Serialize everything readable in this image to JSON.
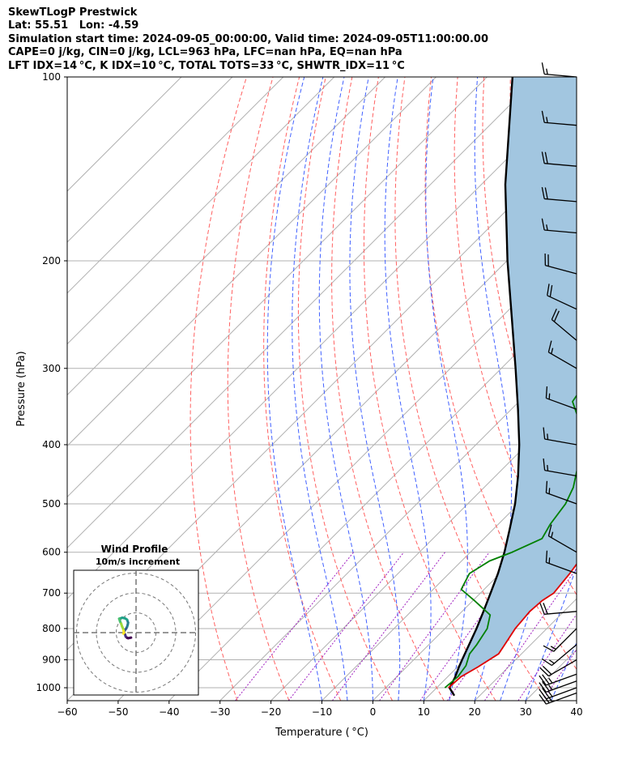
{
  "header": {
    "lines": [
      "SkewTLogP Prestwick",
      "Lat: 55.51   Lon: -4.59",
      "Simulation start time: 2024-09-05_00:00:00, Valid time: 2024-09-05T11:00:00.00",
      "CAPE=0 j/kg, CIN=0 j/kg, LCL=963 hPa, LFC=nan hPa, EQ=nan hPa",
      "LFT IDX=14 °C, K IDX=10 °C, TOTAL TOTS=33 °C, SHWTR_IDX=11 °C"
    ]
  },
  "chart_data": {
    "type": "skew-t",
    "xlabel": "Temperature ( °C)",
    "ylabel": "Pressure (hPa)",
    "xlim": [
      -60,
      40
    ],
    "ylim": [
      1050,
      100
    ],
    "x_ticks": [
      -60,
      -50,
      -40,
      -30,
      -20,
      -10,
      0,
      10,
      20,
      30,
      40
    ],
    "x_tick_labels": [
      "−60",
      "−50",
      "−40",
      "−30",
      "−20",
      "−10",
      "0",
      "10",
      "20",
      "30",
      "40"
    ],
    "y_ticks": [
      100,
      200,
      300,
      400,
      500,
      600,
      700,
      800,
      900,
      1000
    ],
    "grid": true,
    "skew": "45deg",
    "colors": {
      "temperature": "#e00000",
      "dewpoint": "#008000",
      "parcel": "#000000",
      "cape_fill": "#a2c6e0",
      "dry_adiabats": "#ff6060",
      "moist_adiabats": "#4060ff",
      "mixing_ratio": "#a020c0"
    },
    "temperature_profile": [
      {
        "p": 1000,
        "t": 12.3
      },
      {
        "p": 960,
        "t": 12.6
      },
      {
        "p": 925,
        "t": 14.0
      },
      {
        "p": 880,
        "t": 15.5
      },
      {
        "p": 850,
        "t": 14.9
      },
      {
        "p": 800,
        "t": 13.8
      },
      {
        "p": 750,
        "t": 13.3
      },
      {
        "p": 720,
        "t": 13.6
      },
      {
        "p": 700,
        "t": 14.4
      },
      {
        "p": 650,
        "t": 13.7
      },
      {
        "p": 600,
        "t": 12.6
      },
      {
        "p": 550,
        "t": 10.7
      },
      {
        "p": 500,
        "t": 8.0
      },
      {
        "p": 450,
        "t": 4.2
      },
      {
        "p": 400,
        "t": 0.2
      },
      {
        "p": 350,
        "t": -4.9
      },
      {
        "p": 320,
        "t": -9.2
      },
      {
        "p": 300,
        "t": -11.8
      },
      {
        "p": 270,
        "t": -15.0
      },
      {
        "p": 250,
        "t": -17.7
      },
      {
        "p": 235,
        "t": -20.1
      },
      {
        "p": 220,
        "t": -21.5
      },
      {
        "p": 200,
        "t": -24.4
      },
      {
        "p": 180,
        "t": -28.5
      },
      {
        "p": 165,
        "t": -31.6
      },
      {
        "p": 150,
        "t": -35.3
      },
      {
        "p": 140,
        "t": -38.4
      },
      {
        "p": 130,
        "t": -41.0
      },
      {
        "p": 120,
        "t": -44.6
      },
      {
        "p": 110,
        "t": -48.0
      },
      {
        "p": 100,
        "t": -51.9
      }
    ],
    "dewpoint_profile": [
      {
        "p": 1000,
        "t": 11.6
      },
      {
        "p": 960,
        "t": 12.0
      },
      {
        "p": 920,
        "t": 11.4
      },
      {
        "p": 880,
        "t": 9.8
      },
      {
        "p": 850,
        "t": 9.4
      },
      {
        "p": 800,
        "t": 8.3
      },
      {
        "p": 760,
        "t": 6.2
      },
      {
        "p": 720,
        "t": 0.3
      },
      {
        "p": 690,
        "t": -4.5
      },
      {
        "p": 650,
        "t": -6.0
      },
      {
        "p": 620,
        "t": -4.5
      },
      {
        "p": 600,
        "t": -1.8
      },
      {
        "p": 570,
        "t": 1.4
      },
      {
        "p": 540,
        "t": 0.2
      },
      {
        "p": 500,
        "t": -0.8
      },
      {
        "p": 470,
        "t": -2.5
      },
      {
        "p": 440,
        "t": -5.2
      },
      {
        "p": 400,
        "t": -9.4
      },
      {
        "p": 360,
        "t": -15.5
      },
      {
        "p": 340,
        "t": -19.5
      },
      {
        "p": 320,
        "t": -20.5
      },
      {
        "p": 300,
        "t": -21.8
      },
      {
        "p": 285,
        "t": -22.8
      },
      {
        "p": 270,
        "t": -24.8
      },
      {
        "p": 250,
        "t": -28.5
      },
      {
        "p": 235,
        "t": -31.5
      },
      {
        "p": 220,
        "t": -31.6
      },
      {
        "p": 200,
        "t": -33.0
      },
      {
        "p": 185,
        "t": -35.5
      },
      {
        "p": 170,
        "t": -39.5
      },
      {
        "p": 160,
        "t": -43.0
      },
      {
        "p": 155,
        "t": -44.8
      },
      {
        "p": 145,
        "t": -45.4
      },
      {
        "p": 130,
        "t": -48.3
      },
      {
        "p": 115,
        "t": -52.4
      },
      {
        "p": 100,
        "t": -57.1
      }
    ],
    "parcel_profile": [
      {
        "p": 1030,
        "t": 15.0
      },
      {
        "p": 1000,
        "t": 12.5
      },
      {
        "p": 963,
        "t": 11.6
      },
      {
        "p": 925,
        "t": 10.3
      },
      {
        "p": 900,
        "t": 9.5
      },
      {
        "p": 850,
        "t": 7.9
      },
      {
        "p": 800,
        "t": 6.2
      },
      {
        "p": 750,
        "t": 4.2
      },
      {
        "p": 700,
        "t": 2.0
      },
      {
        "p": 650,
        "t": -0.4
      },
      {
        "p": 600,
        "t": -3.3
      },
      {
        "p": 550,
        "t": -6.8
      },
      {
        "p": 500,
        "t": -10.7
      },
      {
        "p": 450,
        "t": -15.6
      },
      {
        "p": 400,
        "t": -21.5
      },
      {
        "p": 350,
        "t": -28.7
      },
      {
        "p": 300,
        "t": -37.2
      },
      {
        "p": 250,
        "t": -47.4
      },
      {
        "p": 200,
        "t": -59.9
      },
      {
        "p": 150,
        "t": -75.3
      },
      {
        "p": 100,
        "t": -95.0
      }
    ],
    "surface_segment": [
      {
        "p": 1030,
        "t": 15.0
      },
      {
        "p": 963,
        "t": 11.6
      }
    ],
    "wind_barbs": [
      {
        "p": 1020,
        "speed_kt": 25,
        "dir_deg": 250
      },
      {
        "p": 1000,
        "speed_kt": 25,
        "dir_deg": 250
      },
      {
        "p": 975,
        "speed_kt": 25,
        "dir_deg": 250
      },
      {
        "p": 950,
        "speed_kt": 25,
        "dir_deg": 250
      },
      {
        "p": 900,
        "speed_kt": 20,
        "dir_deg": 240
      },
      {
        "p": 850,
        "speed_kt": 15,
        "dir_deg": 230
      },
      {
        "p": 800,
        "speed_kt": 15,
        "dir_deg": 225
      },
      {
        "p": 750,
        "speed_kt": 20,
        "dir_deg": 265
      },
      {
        "p": 650,
        "speed_kt": 15,
        "dir_deg": 290
      },
      {
        "p": 600,
        "speed_kt": 15,
        "dir_deg": 300
      },
      {
        "p": 500,
        "speed_kt": 15,
        "dir_deg": 290
      },
      {
        "p": 450,
        "speed_kt": 15,
        "dir_deg": 280
      },
      {
        "p": 400,
        "speed_kt": 15,
        "dir_deg": 280
      },
      {
        "p": 350,
        "speed_kt": 15,
        "dir_deg": 290
      },
      {
        "p": 300,
        "speed_kt": 15,
        "dir_deg": 300
      },
      {
        "p": 270,
        "speed_kt": 20,
        "dir_deg": 310
      },
      {
        "p": 240,
        "speed_kt": 20,
        "dir_deg": 295
      },
      {
        "p": 210,
        "speed_kt": 20,
        "dir_deg": 285
      },
      {
        "p": 180,
        "speed_kt": 15,
        "dir_deg": 275
      },
      {
        "p": 160,
        "speed_kt": 20,
        "dir_deg": 275
      },
      {
        "p": 140,
        "speed_kt": 20,
        "dir_deg": 275
      },
      {
        "p": 120,
        "speed_kt": 15,
        "dir_deg": 275
      },
      {
        "p": 100,
        "speed_kt": 15,
        "dir_deg": 275
      }
    ],
    "hodograph": {
      "title": "Wind Profile",
      "subtitle": "10m/s increment",
      "ring_step_ms": 10,
      "colormap": "viridis",
      "points_uv": [
        [
          -2.5,
          -2.5
        ],
        [
          -4.0,
          -2.8
        ],
        [
          -4.5,
          -2.6
        ],
        [
          -5.2,
          -2.0
        ],
        [
          -5.5,
          -1.0
        ],
        [
          -6.0,
          0.0
        ],
        [
          -5.8,
          1.0
        ],
        [
          -5.0,
          2.0
        ],
        [
          -4.5,
          3.0
        ],
        [
          -4.2,
          4.0
        ],
        [
          -4.0,
          5.0
        ],
        [
          -4.5,
          6.5
        ],
        [
          -5.5,
          7.2
        ],
        [
          -7.0,
          7.5
        ],
        [
          -8.5,
          7.0
        ],
        [
          -8.0,
          5.5
        ],
        [
          -7.5,
          4.5
        ],
        [
          -7.0,
          3.0
        ],
        [
          -6.5,
          2.0
        ],
        [
          -6.3,
          1.0
        ],
        [
          -6.0,
          0.0
        ],
        [
          -6.4,
          -0.5
        ]
      ]
    }
  }
}
